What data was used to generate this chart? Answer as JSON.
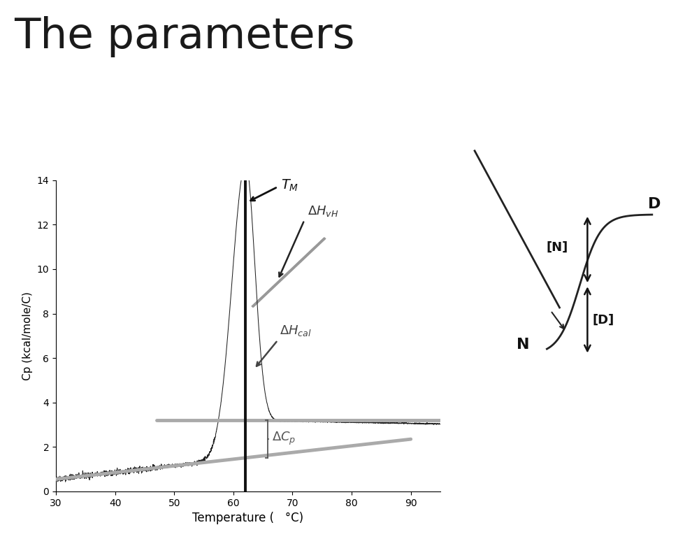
{
  "title": "The parameters",
  "title_fontsize": 44,
  "title_color": "#1a1a1a",
  "bg_color": "#ffffff",
  "xlabel": "Temperature (   °C)",
  "ylabel": "Cp (kcal/mole/C)",
  "xlim": [
    30,
    95
  ],
  "ylim": [
    0,
    14
  ],
  "xticks": [
    30,
    40,
    50,
    60,
    70,
    80,
    90
  ],
  "yticks": [
    0,
    2,
    4,
    6,
    8,
    10,
    12,
    14
  ],
  "T_M": 62,
  "peak_height": 13.0,
  "main_curve_color": "#222222",
  "vline_color": "#111111",
  "gray_thick_color": "#aaaaaa",
  "gray_thin_color": "#bbbbbb",
  "dvH_color": "#999999",
  "annotation_color": "#333333",
  "label_color": "#555555"
}
